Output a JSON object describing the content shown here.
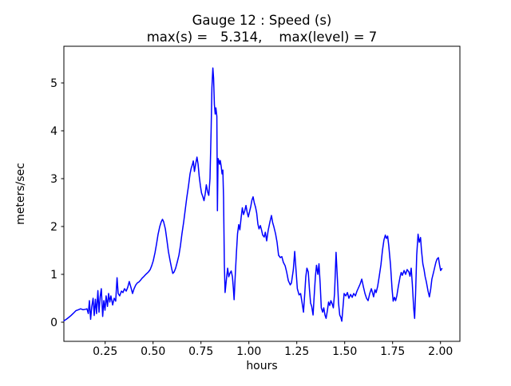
{
  "figure": {
    "title_line1": "Gauge 12 : Speed (s)",
    "title_line2": "max(s) =   5.314,    max(level) = 7",
    "xlabel": "hours",
    "ylabel": "meters/sec",
    "background": "#ffffff",
    "line_color": "#0000ff"
  },
  "chart_data": {
    "type": "line",
    "title": "Gauge 12 : Speed (s)",
    "subtitle": "max(s) =   5.314,    max(level) = 7",
    "xlabel": "hours",
    "ylabel": "meters/sec",
    "max_s": 5.314,
    "max_level": 7,
    "grid": false,
    "legend": "none",
    "xlim": [
      0.035,
      2.1
    ],
    "ylim": [
      -0.4,
      5.77
    ],
    "x_ticks": [
      0.25,
      0.5,
      0.75,
      1.0,
      1.25,
      1.5,
      1.75,
      2.0
    ],
    "x_tick_labels": [
      "0.25",
      "0.50",
      "0.75",
      "1.00",
      "1.25",
      "1.50",
      "1.75",
      "2.00"
    ],
    "y_ticks": [
      0,
      1,
      2,
      3,
      4,
      5
    ],
    "y_tick_labels": [
      "0",
      "1",
      "2",
      "3",
      "4",
      "5"
    ],
    "series": [
      {
        "name": "Speed (s)",
        "color": "#0000ff",
        "points": [
          [
            0.035,
            0.03
          ],
          [
            0.047,
            0.06
          ],
          [
            0.06,
            0.1
          ],
          [
            0.072,
            0.14
          ],
          [
            0.085,
            0.19
          ],
          [
            0.097,
            0.24
          ],
          [
            0.11,
            0.26
          ],
          [
            0.122,
            0.28
          ],
          [
            0.135,
            0.26
          ],
          [
            0.147,
            0.27
          ],
          [
            0.155,
            0.28
          ],
          [
            0.162,
            0.18
          ],
          [
            0.168,
            0.45
          ],
          [
            0.174,
            0.06
          ],
          [
            0.18,
            0.32
          ],
          [
            0.187,
            0.5
          ],
          [
            0.193,
            0.14
          ],
          [
            0.199,
            0.48
          ],
          [
            0.205,
            0.18
          ],
          [
            0.212,
            0.66
          ],
          [
            0.218,
            0.21
          ],
          [
            0.224,
            0.54
          ],
          [
            0.23,
            0.7
          ],
          [
            0.237,
            0.12
          ],
          [
            0.243,
            0.45
          ],
          [
            0.249,
            0.25
          ],
          [
            0.255,
            0.55
          ],
          [
            0.262,
            0.33
          ],
          [
            0.268,
            0.6
          ],
          [
            0.274,
            0.42
          ],
          [
            0.28,
            0.55
          ],
          [
            0.289,
            0.36
          ],
          [
            0.297,
            0.5
          ],
          [
            0.305,
            0.44
          ],
          [
            0.312,
            0.93
          ],
          [
            0.318,
            0.6
          ],
          [
            0.326,
            0.55
          ],
          [
            0.335,
            0.65
          ],
          [
            0.343,
            0.62
          ],
          [
            0.351,
            0.7
          ],
          [
            0.36,
            0.65
          ],
          [
            0.368,
            0.73
          ],
          [
            0.376,
            0.85
          ],
          [
            0.385,
            0.72
          ],
          [
            0.393,
            0.6
          ],
          [
            0.401,
            0.7
          ],
          [
            0.41,
            0.78
          ],
          [
            0.418,
            0.82
          ],
          [
            0.426,
            0.84
          ],
          [
            0.435,
            0.88
          ],
          [
            0.443,
            0.92
          ],
          [
            0.451,
            0.95
          ],
          [
            0.46,
            0.99
          ],
          [
            0.468,
            1.02
          ],
          [
            0.476,
            1.05
          ],
          [
            0.485,
            1.1
          ],
          [
            0.493,
            1.18
          ],
          [
            0.501,
            1.28
          ],
          [
            0.51,
            1.45
          ],
          [
            0.518,
            1.63
          ],
          [
            0.526,
            1.83
          ],
          [
            0.535,
            2.0
          ],
          [
            0.543,
            2.1
          ],
          [
            0.549,
            2.15
          ],
          [
            0.555,
            2.1
          ],
          [
            0.564,
            1.95
          ],
          [
            0.572,
            1.72
          ],
          [
            0.58,
            1.48
          ],
          [
            0.589,
            1.28
          ],
          [
            0.597,
            1.12
          ],
          [
            0.603,
            1.02
          ],
          [
            0.61,
            1.05
          ],
          [
            0.618,
            1.13
          ],
          [
            0.626,
            1.25
          ],
          [
            0.635,
            1.4
          ],
          [
            0.643,
            1.6
          ],
          [
            0.651,
            1.85
          ],
          [
            0.66,
            2.1
          ],
          [
            0.668,
            2.35
          ],
          [
            0.676,
            2.6
          ],
          [
            0.685,
            2.85
          ],
          [
            0.693,
            3.1
          ],
          [
            0.699,
            3.22
          ],
          [
            0.706,
            3.3
          ],
          [
            0.71,
            3.37
          ],
          [
            0.716,
            3.15
          ],
          [
            0.722,
            3.3
          ],
          [
            0.729,
            3.45
          ],
          [
            0.735,
            3.3
          ],
          [
            0.741,
            3.05
          ],
          [
            0.747,
            2.85
          ],
          [
            0.753,
            2.7
          ],
          [
            0.76,
            2.62
          ],
          [
            0.766,
            2.54
          ],
          [
            0.772,
            2.68
          ],
          [
            0.778,
            2.87
          ],
          [
            0.785,
            2.72
          ],
          [
            0.791,
            2.65
          ],
          [
            0.797,
            3.0
          ],
          [
            0.803,
            4.0
          ],
          [
            0.807,
            4.9
          ],
          [
            0.812,
            5.314
          ],
          [
            0.816,
            5.1
          ],
          [
            0.82,
            4.55
          ],
          [
            0.824,
            4.35
          ],
          [
            0.828,
            4.48
          ],
          [
            0.833,
            4.3
          ],
          [
            0.836,
            2.33
          ],
          [
            0.839,
            3.42
          ],
          [
            0.843,
            3.38
          ],
          [
            0.847,
            3.3
          ],
          [
            0.851,
            3.38
          ],
          [
            0.856,
            3.25
          ],
          [
            0.86,
            3.1
          ],
          [
            0.864,
            3.18
          ],
          [
            0.868,
            2.6
          ],
          [
            0.872,
            1.2
          ],
          [
            0.876,
            0.62
          ],
          [
            0.883,
            0.9
          ],
          [
            0.889,
            1.13
          ],
          [
            0.895,
            0.95
          ],
          [
            0.901,
            1.02
          ],
          [
            0.908,
            1.07
          ],
          [
            0.914,
            0.95
          ],
          [
            0.919,
            0.7
          ],
          [
            0.923,
            0.47
          ],
          [
            0.928,
            0.9
          ],
          [
            0.935,
            1.45
          ],
          [
            0.941,
            1.85
          ],
          [
            0.947,
            2.04
          ],
          [
            0.953,
            1.93
          ],
          [
            0.96,
            2.2
          ],
          [
            0.966,
            2.39
          ],
          [
            0.972,
            2.25
          ],
          [
            0.978,
            2.32
          ],
          [
            0.985,
            2.44
          ],
          [
            0.991,
            2.3
          ],
          [
            0.997,
            2.2
          ],
          [
            1.003,
            2.3
          ],
          [
            1.01,
            2.42
          ],
          [
            1.016,
            2.55
          ],
          [
            1.022,
            2.62
          ],
          [
            1.028,
            2.5
          ],
          [
            1.035,
            2.4
          ],
          [
            1.041,
            2.28
          ],
          [
            1.047,
            2.05
          ],
          [
            1.053,
            1.95
          ],
          [
            1.06,
            2.02
          ],
          [
            1.066,
            1.93
          ],
          [
            1.072,
            1.82
          ],
          [
            1.08,
            1.78
          ],
          [
            1.086,
            1.88
          ],
          [
            1.093,
            1.7
          ],
          [
            1.101,
            1.92
          ],
          [
            1.11,
            2.1
          ],
          [
            1.118,
            2.23
          ],
          [
            1.124,
            2.08
          ],
          [
            1.13,
            2.0
          ],
          [
            1.139,
            1.85
          ],
          [
            1.147,
            1.67
          ],
          [
            1.155,
            1.4
          ],
          [
            1.164,
            1.35
          ],
          [
            1.172,
            1.37
          ],
          [
            1.18,
            1.25
          ],
          [
            1.189,
            1.18
          ],
          [
            1.197,
            1.05
          ],
          [
            1.206,
            0.87
          ],
          [
            1.216,
            0.78
          ],
          [
            1.222,
            0.82
          ],
          [
            1.232,
            1.1
          ],
          [
            1.239,
            1.48
          ],
          [
            1.246,
            1.1
          ],
          [
            1.253,
            0.7
          ],
          [
            1.262,
            0.57
          ],
          [
            1.27,
            0.6
          ],
          [
            1.278,
            0.4
          ],
          [
            1.285,
            0.21
          ],
          [
            1.291,
            0.55
          ],
          [
            1.297,
            0.95
          ],
          [
            1.303,
            1.13
          ],
          [
            1.31,
            1.05
          ],
          [
            1.316,
            0.7
          ],
          [
            1.322,
            0.4
          ],
          [
            1.328,
            0.33
          ],
          [
            1.335,
            0.15
          ],
          [
            1.341,
            0.55
          ],
          [
            1.347,
            0.95
          ],
          [
            1.353,
            1.19
          ],
          [
            1.36,
            1.0
          ],
          [
            1.366,
            1.22
          ],
          [
            1.372,
            0.8
          ],
          [
            1.378,
            0.3
          ],
          [
            1.385,
            0.21
          ],
          [
            1.391,
            0.3
          ],
          [
            1.397,
            0.15
          ],
          [
            1.403,
            0.08
          ],
          [
            1.41,
            0.25
          ],
          [
            1.416,
            0.42
          ],
          [
            1.422,
            0.35
          ],
          [
            1.428,
            0.45
          ],
          [
            1.435,
            0.38
          ],
          [
            1.441,
            0.3
          ],
          [
            1.447,
            0.6
          ],
          [
            1.455,
            1.46
          ],
          [
            1.462,
            0.9
          ],
          [
            1.468,
            0.4
          ],
          [
            1.474,
            0.15
          ],
          [
            1.48,
            0.1
          ],
          [
            1.485,
            0.02
          ],
          [
            1.491,
            0.3
          ],
          [
            1.497,
            0.6
          ],
          [
            1.506,
            0.55
          ],
          [
            1.514,
            0.62
          ],
          [
            1.522,
            0.5
          ],
          [
            1.531,
            0.58
          ],
          [
            1.539,
            0.52
          ],
          [
            1.547,
            0.6
          ],
          [
            1.556,
            0.55
          ],
          [
            1.564,
            0.65
          ],
          [
            1.572,
            0.72
          ],
          [
            1.581,
            0.8
          ],
          [
            1.589,
            0.9
          ],
          [
            1.597,
            0.75
          ],
          [
            1.606,
            0.6
          ],
          [
            1.614,
            0.5
          ],
          [
            1.622,
            0.45
          ],
          [
            1.631,
            0.6
          ],
          [
            1.639,
            0.7
          ],
          [
            1.645,
            0.62
          ],
          [
            1.651,
            0.53
          ],
          [
            1.658,
            0.68
          ],
          [
            1.664,
            0.62
          ],
          [
            1.672,
            0.75
          ],
          [
            1.68,
            0.95
          ],
          [
            1.689,
            1.2
          ],
          [
            1.697,
            1.5
          ],
          [
            1.705,
            1.72
          ],
          [
            1.712,
            1.82
          ],
          [
            1.718,
            1.75
          ],
          [
            1.724,
            1.8
          ],
          [
            1.73,
            1.6
          ],
          [
            1.739,
            1.2
          ],
          [
            1.747,
            0.7
          ],
          [
            1.753,
            0.44
          ],
          [
            1.76,
            0.52
          ],
          [
            1.766,
            0.45
          ],
          [
            1.772,
            0.55
          ],
          [
            1.78,
            0.75
          ],
          [
            1.789,
            0.95
          ],
          [
            1.795,
            1.04
          ],
          [
            1.801,
            0.98
          ],
          [
            1.81,
            1.08
          ],
          [
            1.818,
            1.0
          ],
          [
            1.826,
            1.1
          ],
          [
            1.835,
            1.05
          ],
          [
            1.841,
            0.96
          ],
          [
            1.847,
            1.13
          ],
          [
            1.853,
            0.8
          ],
          [
            1.86,
            0.3
          ],
          [
            1.865,
            0.08
          ],
          [
            1.87,
            0.6
          ],
          [
            1.876,
            1.4
          ],
          [
            1.883,
            1.84
          ],
          [
            1.889,
            1.67
          ],
          [
            1.896,
            1.77
          ],
          [
            1.901,
            1.5
          ],
          [
            1.908,
            1.22
          ],
          [
            1.914,
            1.1
          ],
          [
            1.92,
            0.95
          ],
          [
            1.926,
            0.85
          ],
          [
            1.935,
            0.65
          ],
          [
            1.942,
            0.53
          ],
          [
            1.949,
            0.7
          ],
          [
            1.955,
            0.9
          ],
          [
            1.964,
            1.05
          ],
          [
            1.97,
            1.15
          ],
          [
            1.976,
            1.25
          ],
          [
            1.982,
            1.32
          ],
          [
            1.989,
            1.35
          ],
          [
            1.995,
            1.2
          ],
          [
            2.001,
            1.08
          ],
          [
            2.007,
            1.12
          ]
        ]
      }
    ]
  }
}
